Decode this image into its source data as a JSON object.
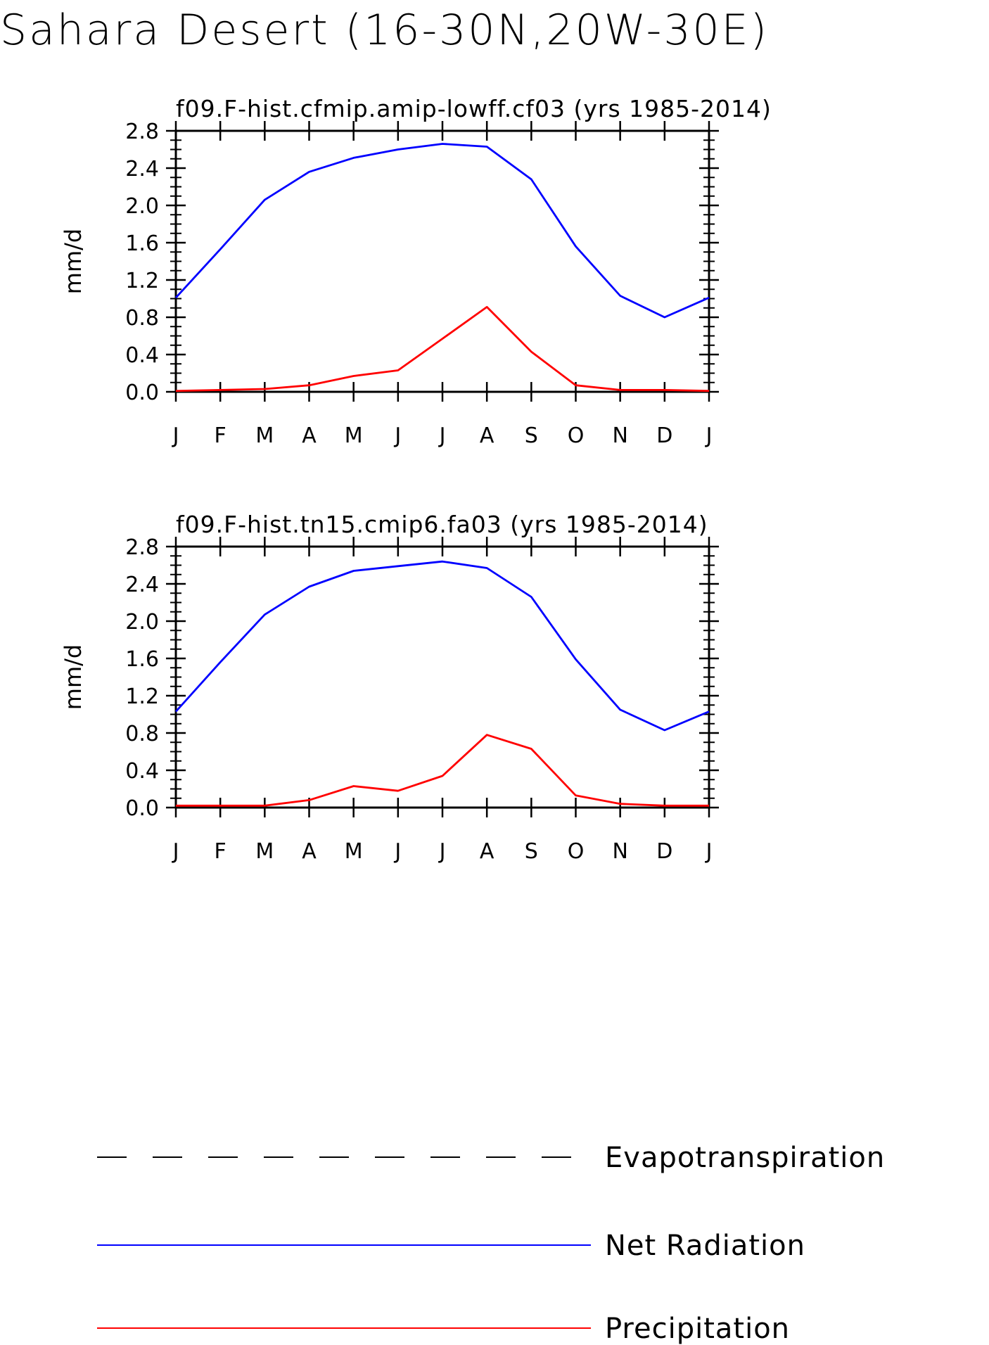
{
  "title": "Sahara Desert (16-30N,20W-30E)",
  "chart_data": [
    {
      "type": "line",
      "title": "f09.F-hist.cfmip.amip-lowff.cf03 (yrs 1985-2014)",
      "ylabel": "mm/d",
      "xlabel": "",
      "categories": [
        "J",
        "F",
        "M",
        "A",
        "M",
        "J",
        "J",
        "A",
        "S",
        "O",
        "N",
        "D",
        "J"
      ],
      "ylim": [
        0.0,
        2.8
      ],
      "yticks": [
        "0.0",
        "0.4",
        "0.8",
        "1.2",
        "1.6",
        "2.0",
        "2.4",
        "2.8"
      ],
      "series": [
        {
          "name": "Net Radiation",
          "color": "#0000ff",
          "values": [
            1.01,
            1.53,
            2.06,
            2.36,
            2.51,
            2.6,
            2.66,
            2.63,
            2.28,
            1.56,
            1.03,
            0.8,
            1.01
          ]
        },
        {
          "name": "Precipitation",
          "color": "#ff0000",
          "values": [
            0.01,
            0.02,
            0.03,
            0.07,
            0.17,
            0.23,
            0.57,
            0.91,
            0.43,
            0.07,
            0.02,
            0.02,
            0.01
          ]
        }
      ]
    },
    {
      "type": "line",
      "title": "f09.F-hist.tn15.cmip6.fa03 (yrs 1985-2014)",
      "ylabel": "mm/d",
      "xlabel": "",
      "categories": [
        "J",
        "F",
        "M",
        "A",
        "M",
        "J",
        "J",
        "A",
        "S",
        "O",
        "N",
        "D",
        "J"
      ],
      "ylim": [
        0.0,
        2.8
      ],
      "yticks": [
        "0.0",
        "0.4",
        "0.8",
        "1.2",
        "1.6",
        "2.0",
        "2.4",
        "2.8"
      ],
      "series": [
        {
          "name": "Net Radiation",
          "color": "#0000ff",
          "values": [
            1.03,
            1.56,
            2.07,
            2.37,
            2.54,
            2.59,
            2.64,
            2.57,
            2.26,
            1.59,
            1.05,
            0.83,
            1.03
          ]
        },
        {
          "name": "Precipitation",
          "color": "#ff0000",
          "values": [
            0.02,
            0.02,
            0.02,
            0.08,
            0.23,
            0.18,
            0.34,
            0.78,
            0.63,
            0.13,
            0.04,
            0.02,
            0.02
          ]
        }
      ]
    }
  ],
  "legend": [
    {
      "label": "Evapotranspiration",
      "color": "#000000",
      "style": "dashed"
    },
    {
      "label": "Net Radiation",
      "color": "#0000ff",
      "style": "solid"
    },
    {
      "label": "Precipitation",
      "color": "#ff0000",
      "style": "solid"
    }
  ]
}
